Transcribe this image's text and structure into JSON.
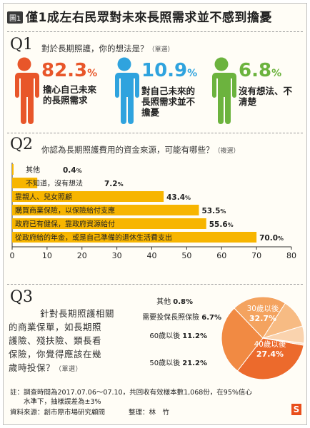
{
  "header": {
    "figure_label": "圖1",
    "title": "僅1成左右民眾對未來長照需求並不感到擔憂"
  },
  "q1": {
    "label": "Q1",
    "question": "對於長期照護，你的想法是？",
    "note": "（單選）",
    "items": [
      {
        "pct": "82.3",
        "unit": "%",
        "color": "#e8562a",
        "lines": [
          "擔心自己未來",
          "的長照需求"
        ]
      },
      {
        "pct": "10.9",
        "unit": "%",
        "color": "#2fa3de",
        "lines": [
          "對自己未來的",
          "長照需求並不",
          "擔憂"
        ]
      },
      {
        "pct": "6.8",
        "unit": "%",
        "color": "#6cb33e",
        "lines": [
          "沒有想法、不",
          "清楚"
        ]
      }
    ]
  },
  "q2": {
    "label": "Q2",
    "question": "你認為長期照護費用的資金來源，可能有哪些？",
    "note": "（複選）"
  },
  "q3": {
    "label": "Q3",
    "question_lines": [
      "針對長期照護相關",
      "的商業保單，如長期照",
      "護險、殘扶險、類長看",
      "保險，你覺得應該在幾",
      "歲時投保？"
    ],
    "note": "（單選）"
  },
  "footer": {
    "note_line1": "註：調查時間為2017.07.06～07.10，共回收有效樣本數1,068份，在95%信心",
    "note_line2": "　　水準下，抽樣誤差為±3%",
    "source": "資料來源：創市際市場研究顧問",
    "editor": "整理：林　竹",
    "logo": "S"
  },
  "chart_data": [
    {
      "type": "bar",
      "orientation": "horizontal",
      "categories": [
        "其他",
        "不知道，沒有想法",
        "靠親人、兒女照顧",
        "購買商業保險，以保險給付支應",
        "政府已有健保，靠政府資源給付",
        "從政府給的年金，或是自己準備的退休生活費支出"
      ],
      "values": [
        0.4,
        7.2,
        43.4,
        53.5,
        55.6,
        70.0
      ],
      "value_labels": [
        "0.4",
        "7.2",
        "43.4",
        "53.5",
        "55.6",
        "70.0"
      ],
      "unit": "%",
      "xlim": [
        0,
        80
      ],
      "xticks": [
        "0",
        "10",
        "20",
        "30",
        "40",
        "50",
        "60",
        "70",
        "80"
      ],
      "bar_color": "#f7b500",
      "title": "",
      "xlabel": "",
      "ylabel": ""
    },
    {
      "type": "pie",
      "labels": [
        "30歲以後",
        "40歲以後",
        "50歲以後",
        "60歲以後",
        "不需要投保長照保險",
        "其他"
      ],
      "values": [
        32.7,
        27.4,
        21.2,
        11.2,
        6.7,
        0.8
      ],
      "value_labels": [
        "32.7",
        "27.4",
        "21.2",
        "11.2",
        "6.7",
        "0.8"
      ],
      "unit": "%",
      "colors": [
        "#ec6a2c",
        "#f18a43",
        "#f4a35f",
        "#f7bb83",
        "#fad3ae",
        "#fce6d2"
      ],
      "title": ""
    }
  ]
}
